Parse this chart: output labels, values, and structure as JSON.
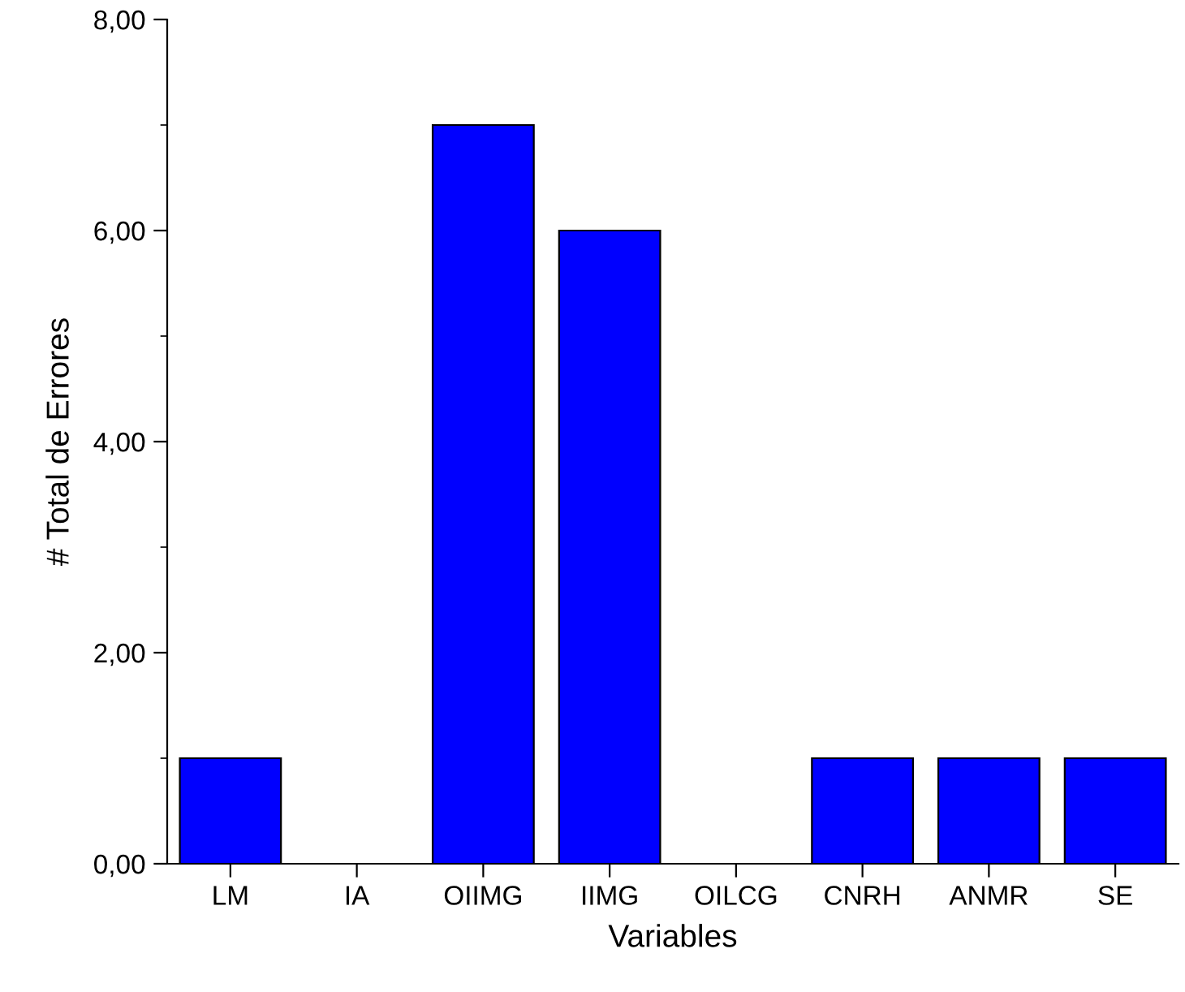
{
  "chart_data": {
    "type": "bar",
    "xlabel": "Variables",
    "ylabel": "# Total de Errores",
    "categories": [
      "LM",
      "IA",
      "OIIMG",
      "IIMG",
      "OILCG",
      "CNRH",
      "ANMR",
      "SE"
    ],
    "values": [
      1,
      0,
      7,
      6,
      0,
      1,
      1,
      1
    ],
    "color": "#0000ff",
    "ylim": [
      0,
      8
    ],
    "yticks": [
      {
        "value": 0,
        "label": "0,00"
      },
      {
        "value": 1,
        "label": null
      },
      {
        "value": 2,
        "label": "2,00"
      },
      {
        "value": 3,
        "label": null
      },
      {
        "value": 4,
        "label": "4,00"
      },
      {
        "value": 5,
        "label": null
      },
      {
        "value": 6,
        "label": "6,00"
      },
      {
        "value": 7,
        "label": null
      },
      {
        "value": 8,
        "label": "8,00"
      }
    ],
    "grid": false,
    "legend": false
  }
}
